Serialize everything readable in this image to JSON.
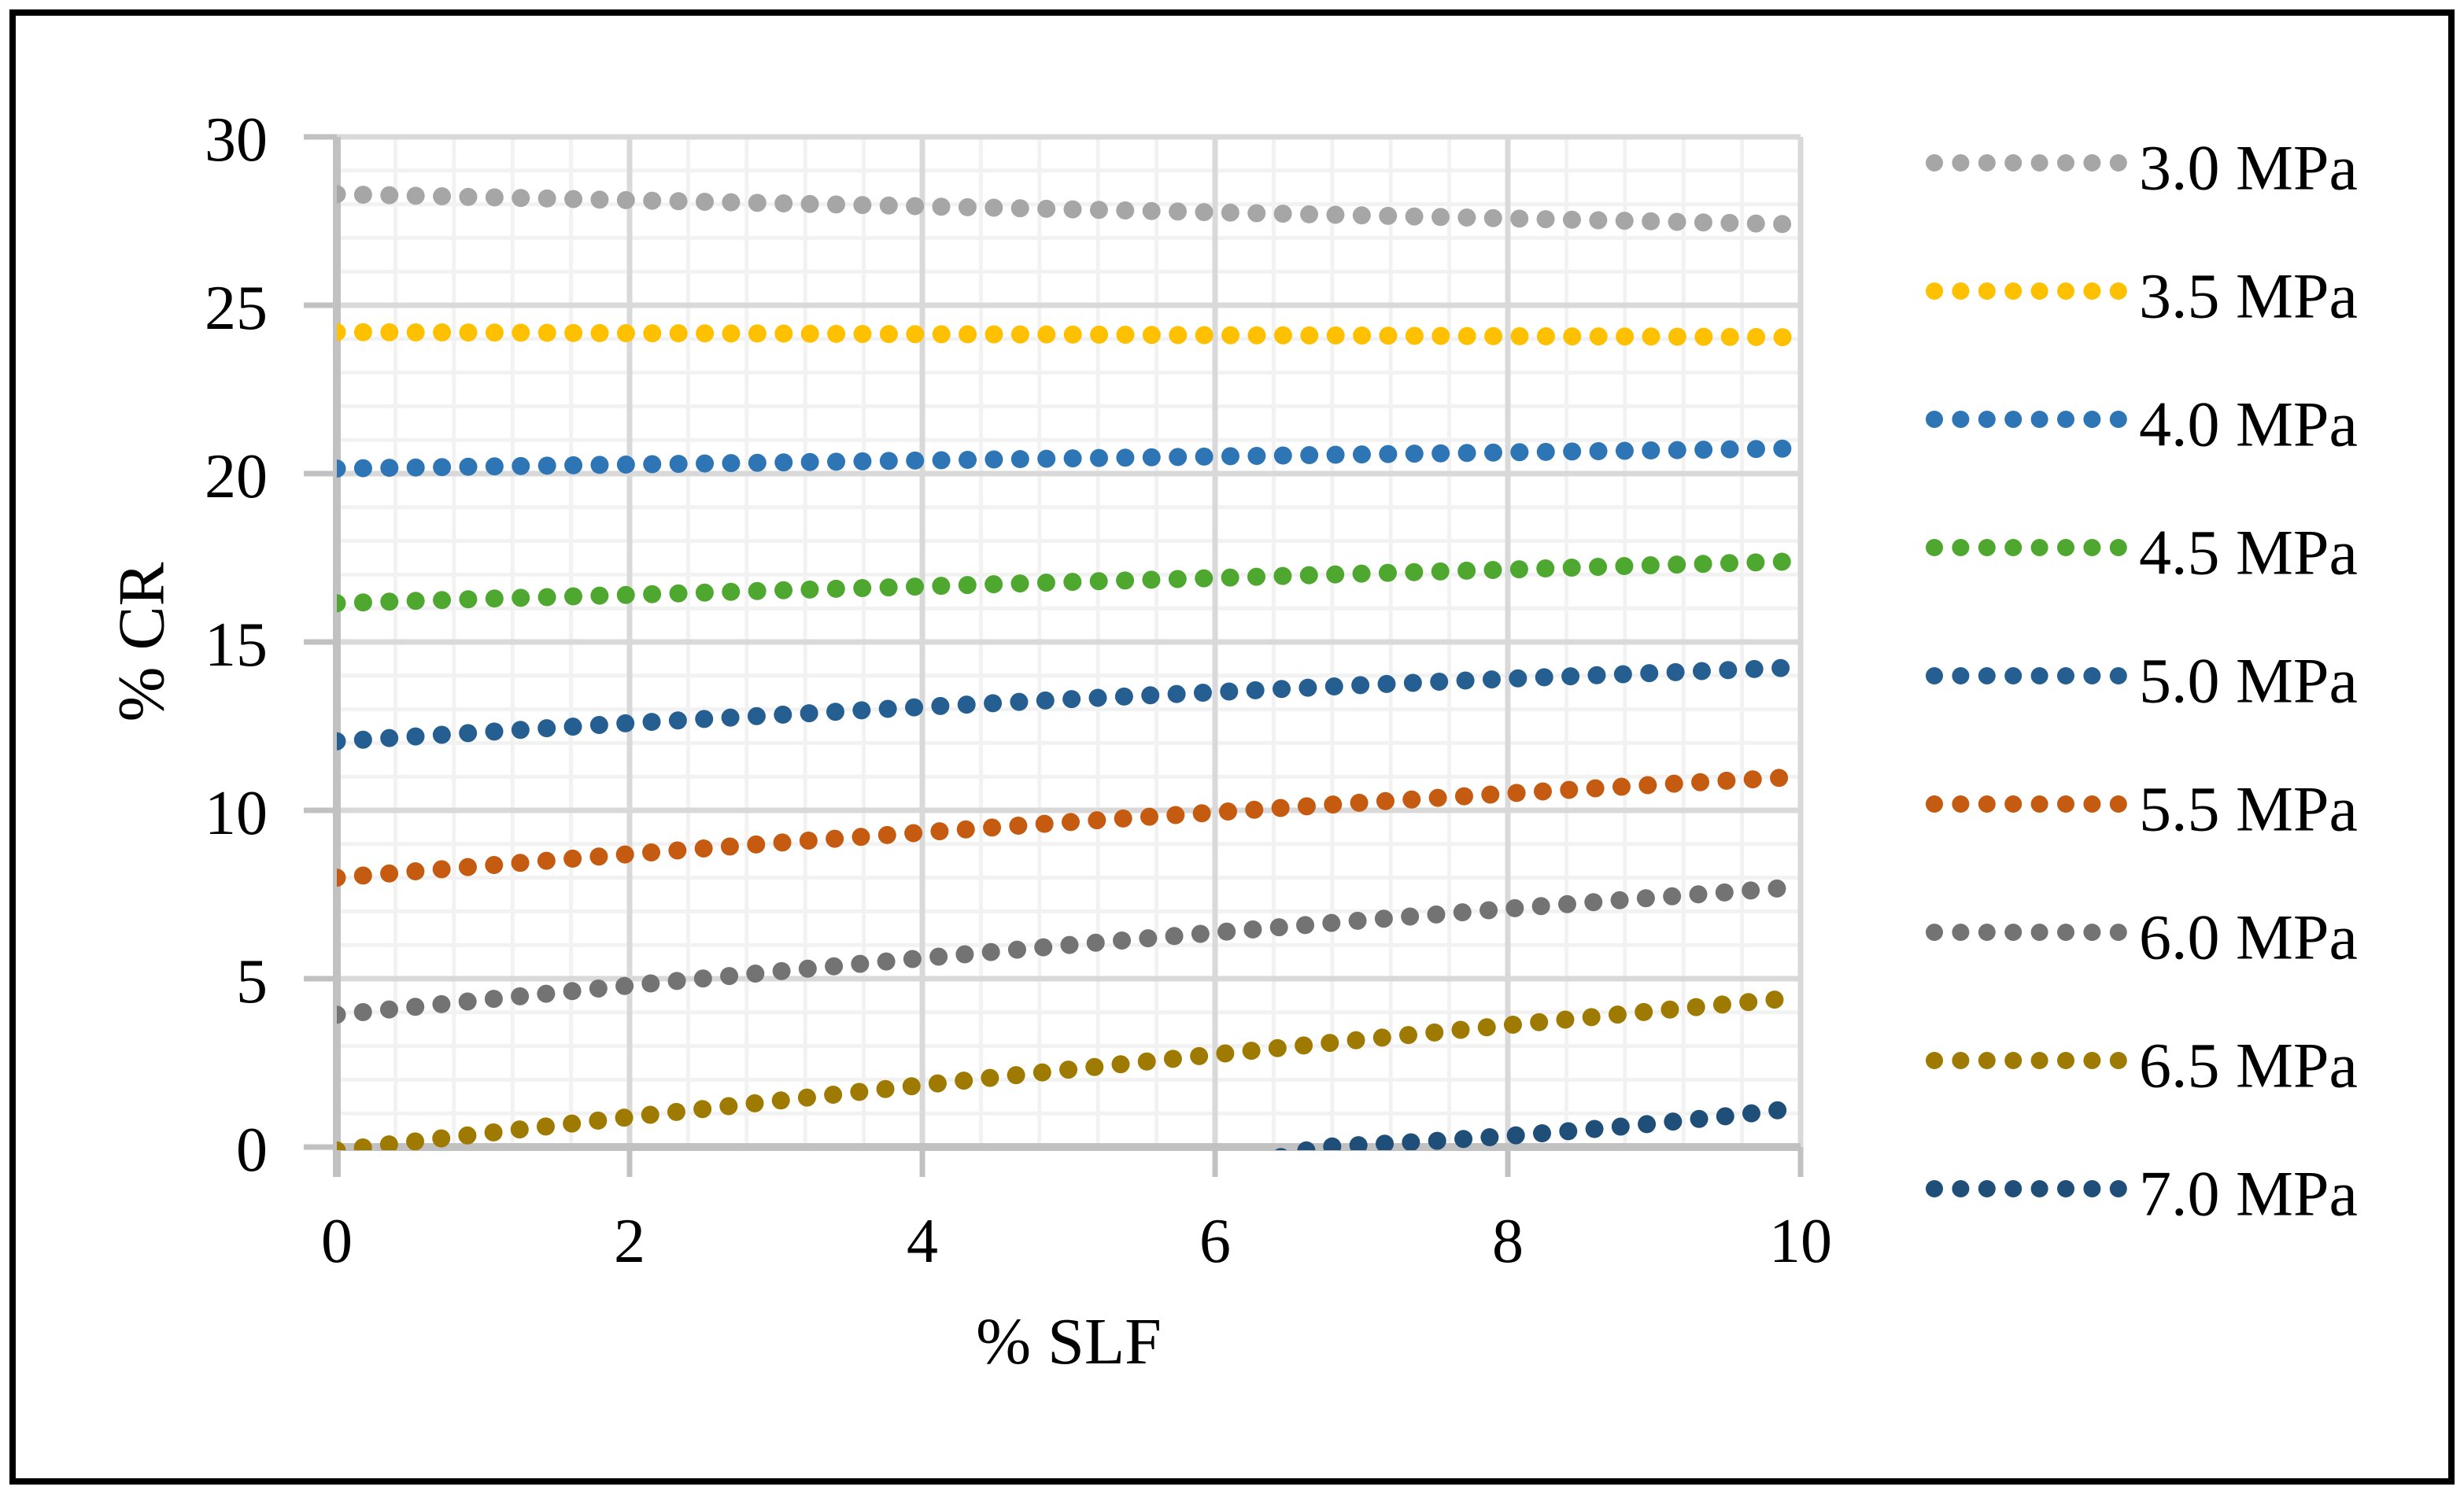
{
  "figure": {
    "background": "#FFFFFF",
    "border_color": "#000000"
  },
  "chart_data": {
    "type": "line",
    "line_style": "dotted",
    "title": "",
    "xlabel": "% SLF",
    "ylabel": "% CR",
    "xlim": [
      0,
      10
    ],
    "ylim": [
      0,
      30
    ],
    "x_major_unit": 2,
    "x_minor_unit": 0.4,
    "y_major_unit": 5,
    "y_minor_unit": 1,
    "x_ticks": [
      0,
      2,
      4,
      6,
      8,
      10
    ],
    "y_ticks": [
      0,
      5,
      10,
      15,
      20,
      25,
      30
    ],
    "grid": true,
    "legend_position": "right",
    "x": [
      0,
      1,
      2,
      3,
      4,
      5,
      6,
      7,
      8,
      9,
      10
    ],
    "series": [
      {
        "name": "3.0 MPa",
        "color": "#A6A6A6",
        "values": [
          28.3,
          28.21,
          28.12,
          28.03,
          27.94,
          27.85,
          27.76,
          27.67,
          27.58,
          27.49,
          27.4
        ]
      },
      {
        "name": "3.5 MPa",
        "color": "#FFC000",
        "values": [
          24.2,
          24.19,
          24.17,
          24.16,
          24.14,
          24.13,
          24.11,
          24.1,
          24.08,
          24.07,
          24.05
        ]
      },
      {
        "name": "4.0 MPa",
        "color": "#2E75B6",
        "values": [
          20.15,
          20.21,
          20.27,
          20.33,
          20.39,
          20.45,
          20.51,
          20.57,
          20.63,
          20.69,
          20.75
        ]
      },
      {
        "name": "4.5 MPa",
        "color": "#4EA72E",
        "values": [
          16.15,
          16.28,
          16.4,
          16.53,
          16.65,
          16.78,
          16.9,
          17.03,
          17.15,
          17.28,
          17.4
        ]
      },
      {
        "name": "5.0 MPa",
        "color": "#255E91",
        "values": [
          12.05,
          12.32,
          12.59,
          12.83,
          13.07,
          13.3,
          13.51,
          13.72,
          13.91,
          14.08,
          14.25
        ]
      },
      {
        "name": "5.5 MPa",
        "color": "#C55A11",
        "values": [
          8.0,
          8.35,
          8.7,
          9.03,
          9.34,
          9.65,
          9.94,
          10.23,
          10.5,
          10.76,
          11.0
        ]
      },
      {
        "name": "6.0 MPa",
        "color": "#737373",
        "values": [
          3.93,
          4.37,
          4.8,
          5.21,
          5.61,
          6.0,
          6.37,
          6.73,
          7.08,
          7.41,
          7.73
        ]
      },
      {
        "name": "6.5 MPa",
        "color": "#9F7A00",
        "values": [
          -0.1,
          0.4,
          0.89,
          1.37,
          1.84,
          2.3,
          2.75,
          3.19,
          3.62,
          4.04,
          4.45
        ]
      },
      {
        "name": "7.0 MPa",
        "color": "#1F4E79",
        "x": [
          6.45,
          6.71,
          7.0,
          7.5,
          8.0,
          8.5,
          9.0,
          9.5,
          10.0
        ],
        "values": [
          -0.3,
          0.0,
          0.06,
          0.18,
          0.33,
          0.5,
          0.7,
          0.92,
          1.17
        ]
      }
    ]
  }
}
